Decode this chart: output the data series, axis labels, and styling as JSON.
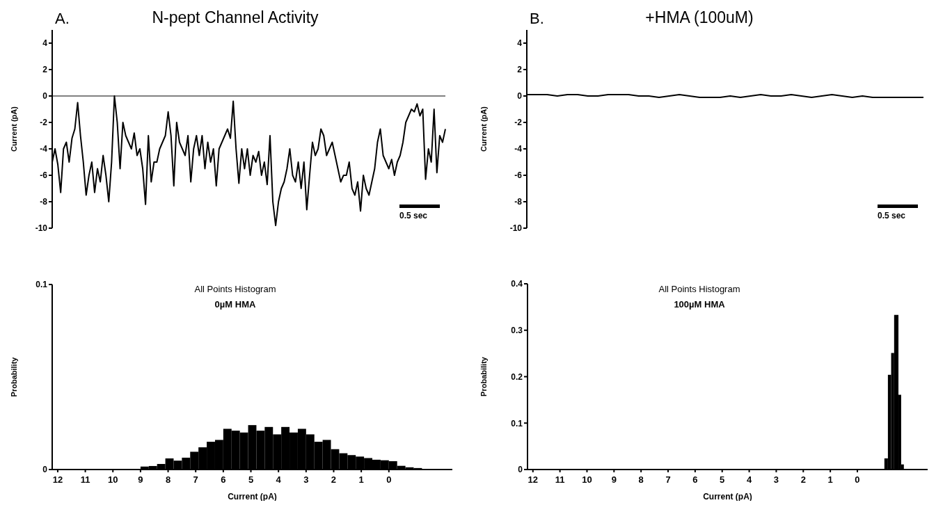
{
  "chart_data": [
    {
      "type": "line",
      "title": "N-pept Channel Activity",
      "ylabel": "Current (pA)",
      "annotations": [
        "A.",
        "0.5 sec"
      ],
      "tick_labels": "y",
      "categories": [
        null,
        null,
        null,
        null,
        null,
        null,
        null,
        null,
        null,
        null,
        null,
        null,
        null,
        null,
        null,
        null,
        null,
        null,
        null,
        null,
        null,
        null,
        null,
        null,
        null,
        null,
        null,
        null,
        null,
        null,
        null,
        null,
        null,
        null,
        null,
        null,
        null,
        null,
        null,
        null,
        null,
        null,
        null,
        null,
        null,
        null,
        null,
        null,
        null,
        null,
        null,
        null,
        null,
        null,
        null,
        null,
        null,
        null,
        null,
        null,
        null,
        null,
        null,
        null,
        null,
        null,
        null,
        null,
        null,
        null,
        null,
        null,
        null,
        null,
        null,
        null,
        null,
        null,
        null,
        null,
        null,
        null,
        null,
        null,
        null,
        null,
        null,
        null,
        null,
        null,
        null,
        null,
        null,
        null,
        null,
        null,
        null,
        null,
        null,
        null,
        null,
        null,
        null,
        null,
        null,
        null,
        null,
        null,
        null,
        null,
        null,
        null,
        null,
        null,
        null,
        null,
        null,
        null,
        null,
        null,
        null,
        null,
        null,
        null,
        null,
        null,
        null,
        null,
        null,
        null,
        null,
        null,
        null,
        null,
        null,
        null,
        null,
        null,
        null,
        null
      ],
      "color": "#000000",
      "values": [
        -5,
        -4,
        -5.2,
        -7.3,
        -4,
        -3.5,
        -5,
        -3.2,
        -2.5,
        -0.5,
        -3,
        -5,
        -7.5,
        -6,
        -5,
        -7.3,
        -5.5,
        -6.5,
        -4.5,
        -6,
        -8,
        -5,
        0,
        -2,
        -5.5,
        -2,
        -3,
        -3.5,
        -4,
        -2.8,
        -4.5,
        -4,
        -5.5,
        -8.2,
        -3,
        -6.5,
        -5,
        -5,
        -4,
        -3.5,
        -3,
        -1.2,
        -3,
        -6.8,
        -2,
        -3.5,
        -4,
        -4.5,
        -3,
        -6.5,
        -4,
        -3,
        -4.5,
        -3,
        -5.5,
        -3.5,
        -5,
        -4,
        -6.8,
        -4,
        -3.5,
        -3,
        -2.5,
        -3.2,
        -0.4,
        -4,
        -6.6,
        -4,
        -5.5,
        -4,
        -6,
        -4.5,
        -5,
        -4.2,
        -6,
        -5,
        -6.7,
        -3,
        -8,
        -9.8,
        -8,
        -7,
        -6.5,
        -5.5,
        -4,
        -6,
        -6.5,
        -5,
        -7,
        -5,
        -8.6,
        -6,
        -3.5,
        -4.5,
        -4,
        -2.5,
        -3,
        -4.5,
        -4,
        -3.5,
        -4.5,
        -5.5,
        -6.5,
        -6,
        -6,
        -5,
        -7,
        -7.5,
        -6.5,
        -8.7,
        -6,
        -7,
        -7.5,
        -6.5,
        -5.5,
        -3.5,
        -2.5,
        -4.5,
        -5,
        -5.5,
        -4.8,
        -6,
        -5,
        -4.5,
        -3.5,
        -2,
        -1.5,
        -1,
        -1.2,
        -0.6,
        -1.5,
        -1,
        -6.3,
        -4,
        -5,
        -1,
        -5.8,
        -3,
        -3.5,
        -2.5
      ],
      "ylim": [
        -10,
        5
      ],
      "yticks": [
        -10,
        -8,
        -6,
        -4,
        -2,
        0,
        2,
        4
      ],
      "ref_lines": [
        {
          "axis": "y",
          "value": 0,
          "color": "#000000"
        }
      ]
    },
    {
      "type": "line",
      "title": "+HMA (100uM)",
      "ylabel": "Current (pA)",
      "annotations": [
        "B.",
        "0.5 sec"
      ],
      "tick_labels": "y",
      "categories": [
        null,
        null,
        null,
        null,
        null,
        null,
        null,
        null,
        null,
        null,
        null,
        null,
        null,
        null,
        null,
        null,
        null,
        null,
        null,
        null,
        null,
        null,
        null,
        null,
        null,
        null,
        null,
        null,
        null,
        null,
        null,
        null,
        null,
        null,
        null,
        null,
        null,
        null,
        null,
        null
      ],
      "color": "#000000",
      "values": [
        0.1,
        0.1,
        0.1,
        0,
        0.1,
        0.1,
        0,
        0,
        0.1,
        0.1,
        0.1,
        0,
        0,
        -0.1,
        0,
        0.1,
        0,
        -0.1,
        -0.1,
        -0.1,
        0,
        -0.1,
        0,
        0.1,
        0,
        0,
        0.1,
        0,
        -0.1,
        0,
        0.1,
        0,
        -0.1,
        0,
        -0.1,
        -0.1,
        -0.1,
        -0.1,
        -0.1,
        -0.1
      ],
      "ylim": [
        -10,
        5
      ],
      "yticks": [
        -10,
        -8,
        -6,
        -4,
        -2,
        0,
        2,
        4
      ]
    },
    {
      "type": "histogram",
      "title": "All Points Histogram",
      "subtitle": "0µM HMA",
      "xlabel": "Current (pA)",
      "ylabel": "Probability",
      "color": "#000000",
      "bins": [
        -1.2,
        -0.9,
        -0.6,
        -0.3,
        0,
        0.3,
        0.6,
        0.9,
        1.2,
        1.5,
        1.8,
        2.1,
        2.4,
        2.7,
        3.0,
        3.3,
        3.6,
        3.9,
        4.2,
        4.5,
        4.8,
        5.1,
        5.4,
        5.7,
        6.0,
        6.3,
        6.6,
        6.9,
        7.2,
        7.5,
        7.8,
        8.1,
        8.4,
        8.7,
        9.0,
        10.5,
        12.0
      ],
      "values": [
        0.0008,
        0.0012,
        0.002,
        0.0045,
        0.005,
        0.0053,
        0.0062,
        0.007,
        0.0078,
        0.0088,
        0.011,
        0.016,
        0.015,
        0.019,
        0.022,
        0.02,
        0.023,
        0.019,
        0.023,
        0.021,
        0.024,
        0.02,
        0.021,
        0.022,
        0.016,
        0.015,
        0.012,
        0.0096,
        0.0064,
        0.0048,
        0.006,
        0.003,
        0.0019,
        0.0016,
        0.0003,
        0.0002
      ],
      "xlim": [
        12.2,
        -2.3
      ],
      "xticks": [
        12,
        11,
        10,
        9,
        8,
        7,
        6,
        5,
        4,
        3,
        2,
        1,
        0
      ],
      "ylim": [
        0,
        0.1
      ],
      "yticks": [
        0,
        0.1
      ]
    },
    {
      "type": "histogram",
      "title": "All Points Histogram",
      "subtitle": "100µM HMA",
      "xlabel": "Current (pA)",
      "ylabel": "Probability",
      "color": "#000000",
      "bins": [
        -1.72,
        -1.62,
        -1.52,
        -1.36,
        -1.25,
        -1.13,
        -1.0
      ],
      "values": [
        0.011,
        0.161,
        0.333,
        0.251,
        0.204,
        0.024
      ],
      "xlim": [
        12.2,
        -2.6
      ],
      "xticks": [
        12,
        11,
        10,
        9,
        8,
        7,
        6,
        5,
        4,
        3,
        2,
        1,
        0
      ],
      "ylim": [
        0,
        0.4
      ],
      "yticks": [
        0,
        0.1,
        0.2,
        0.3,
        0.4
      ]
    }
  ]
}
